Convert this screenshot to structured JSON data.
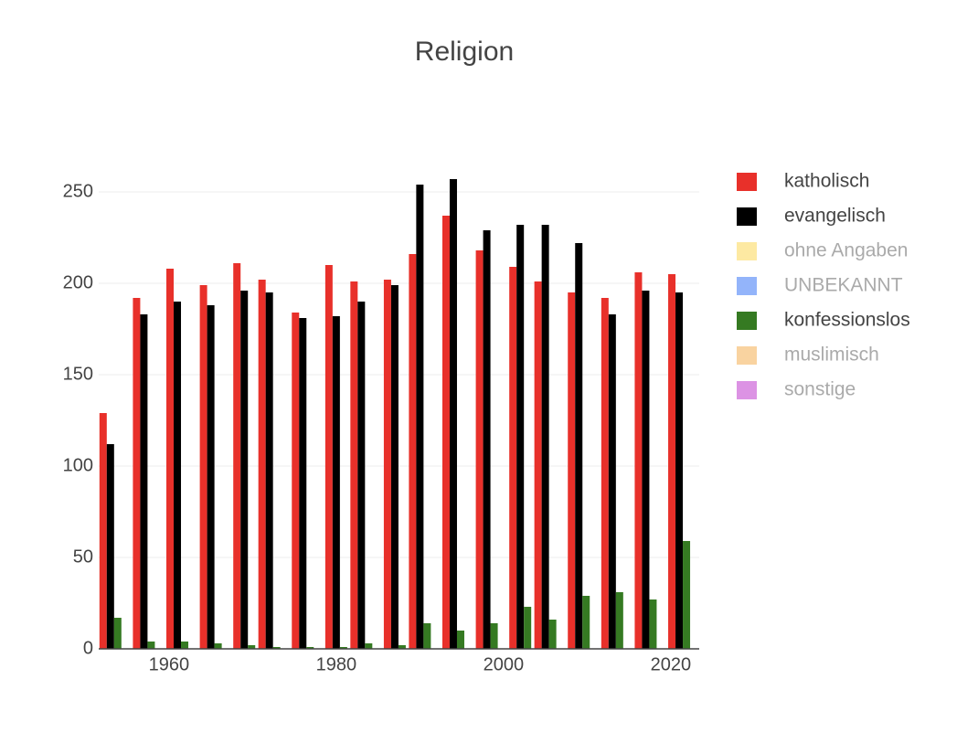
{
  "chart_data": {
    "type": "bar",
    "title": "Religion",
    "x": [
      1953,
      1957,
      1961,
      1965,
      1969,
      1972,
      1976,
      1980,
      1983,
      1987,
      1990,
      1994,
      1998,
      2002,
      2005,
      2009,
      2013,
      2017,
      2021
    ],
    "series": [
      {
        "name": "katholisch",
        "color": "#e8302a",
        "visible": true,
        "values": [
          129,
          192,
          208,
          199,
          211,
          202,
          184,
          210,
          201,
          202,
          216,
          237,
          218,
          209,
          201,
          195,
          192,
          206,
          205
        ]
      },
      {
        "name": "evangelisch",
        "color": "#000000",
        "visible": true,
        "values": [
          112,
          183,
          190,
          188,
          196,
          195,
          181,
          182,
          190,
          199,
          254,
          257,
          229,
          232,
          232,
          222,
          183,
          196,
          195
        ]
      },
      {
        "name": "ohne Angaben",
        "color": "#fbd345",
        "visible": false,
        "values": [
          null,
          null,
          null,
          null,
          null,
          null,
          null,
          null,
          null,
          null,
          null,
          null,
          null,
          null,
          null,
          null,
          null,
          null,
          null
        ]
      },
      {
        "name": "UNBEKANNT",
        "color": "#2769f5",
        "visible": false,
        "values": [
          null,
          null,
          null,
          null,
          null,
          null,
          null,
          null,
          null,
          null,
          null,
          null,
          null,
          null,
          null,
          null,
          null,
          null,
          null
        ]
      },
      {
        "name": "konfessionslos",
        "color": "#357a22",
        "visible": true,
        "values": [
          17,
          4,
          4,
          3,
          2,
          1,
          1,
          1,
          3,
          2,
          14,
          10,
          14,
          23,
          16,
          29,
          31,
          27,
          59
        ]
      },
      {
        "name": "muslimisch",
        "color": "#f3a741",
        "visible": false,
        "values": [
          null,
          null,
          null,
          null,
          null,
          null,
          null,
          null,
          null,
          null,
          null,
          null,
          null,
          null,
          null,
          null,
          null,
          null,
          null
        ]
      },
      {
        "name": "sonstige",
        "color": "#b927c9",
        "visible": false,
        "values": [
          null,
          null,
          null,
          null,
          null,
          null,
          null,
          null,
          null,
          null,
          null,
          null,
          null,
          null,
          null,
          null,
          null,
          null,
          null
        ]
      }
    ],
    "xlim": [
      1951.6,
      2023.4
    ],
    "xticks": [
      1960,
      1980,
      2000,
      2020
    ],
    "ylim": [
      0,
      270
    ],
    "yticks": [
      0,
      50,
      100,
      150,
      200,
      250
    ],
    "grid": true
  }
}
